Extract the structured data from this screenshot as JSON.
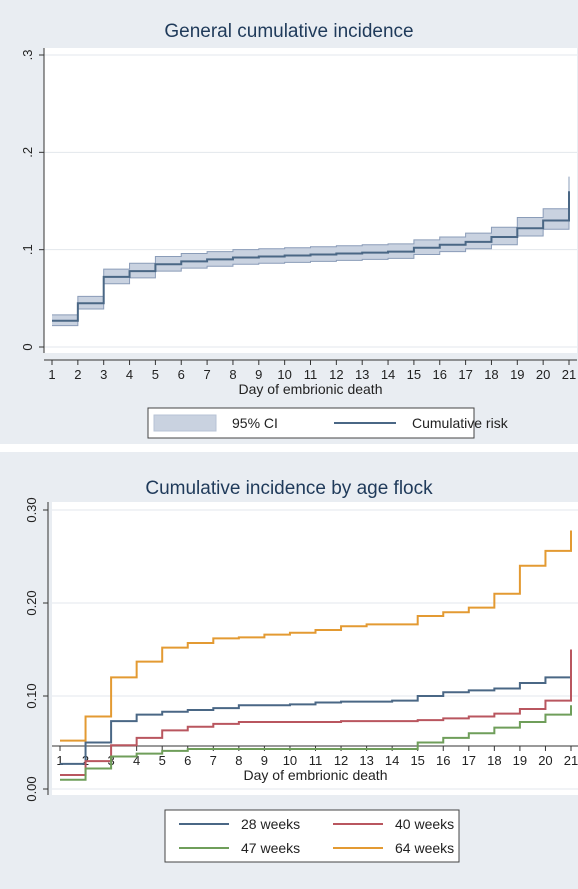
{
  "chart_data": [
    {
      "type": "line",
      "step": true,
      "title": "General cumulative incidence",
      "xlabel": "Day of embrionic death",
      "ylabel": "",
      "xlim": [
        1,
        21
      ],
      "ylim": [
        0,
        0.3
      ],
      "x_ticks": [
        1,
        2,
        3,
        4,
        5,
        6,
        7,
        8,
        9,
        10,
        11,
        12,
        13,
        14,
        15,
        16,
        17,
        18,
        19,
        20,
        21
      ],
      "y_ticks": [
        0,
        0.1,
        0.2,
        0.3
      ],
      "y_tick_labels": [
        "0",
        ".1",
        ".2",
        ".3"
      ],
      "y_tick_labels_rotated": true,
      "grid": "horizontal",
      "legend_position": "bottom",
      "colors": {
        "line": "#4a6785",
        "ci_fill": "#c9d2e0",
        "ci_stroke": "#8a9cb8"
      },
      "x": [
        1,
        2,
        3,
        4,
        5,
        6,
        7,
        8,
        9,
        10,
        11,
        12,
        13,
        14,
        15,
        16,
        17,
        18,
        19,
        20,
        21
      ],
      "series": [
        {
          "name": "Cumulative risk",
          "values": [
            0.027,
            0.045,
            0.072,
            0.078,
            0.085,
            0.088,
            0.09,
            0.092,
            0.093,
            0.094,
            0.095,
            0.096,
            0.097,
            0.098,
            0.102,
            0.105,
            0.108,
            0.113,
            0.122,
            0.13,
            0.16
          ],
          "lower": [
            0.022,
            0.039,
            0.065,
            0.071,
            0.078,
            0.081,
            0.083,
            0.085,
            0.086,
            0.087,
            0.088,
            0.089,
            0.09,
            0.091,
            0.095,
            0.098,
            0.101,
            0.105,
            0.114,
            0.121,
            0.148
          ],
          "upper": [
            0.033,
            0.052,
            0.08,
            0.086,
            0.093,
            0.096,
            0.098,
            0.1,
            0.101,
            0.102,
            0.103,
            0.104,
            0.105,
            0.106,
            0.11,
            0.113,
            0.117,
            0.123,
            0.133,
            0.142,
            0.175
          ]
        }
      ],
      "legend": [
        {
          "label": "95% CI",
          "kind": "band"
        },
        {
          "label": "Cumulative risk",
          "kind": "line"
        }
      ]
    },
    {
      "type": "line",
      "step": true,
      "title": "Cumulative incidence by age flock",
      "xlabel": "Day of embrionic death",
      "ylabel": "",
      "xlim": [
        1,
        21
      ],
      "ylim": [
        0,
        0.3
      ],
      "x_ticks": [
        1,
        2,
        3,
        4,
        5,
        6,
        7,
        8,
        9,
        10,
        11,
        12,
        13,
        14,
        15,
        16,
        17,
        18,
        19,
        20,
        21
      ],
      "y_ticks": [
        0,
        0.1,
        0.2,
        0.3
      ],
      "y_tick_labels": [
        "0.00",
        "0.10",
        "0.20",
        "0.30"
      ],
      "y_tick_labels_rotated": true,
      "grid": "horizontal",
      "legend_position": "bottom",
      "x": [
        1,
        2,
        3,
        4,
        5,
        6,
        7,
        8,
        9,
        10,
        11,
        12,
        13,
        14,
        15,
        16,
        17,
        18,
        19,
        20,
        21
      ],
      "series": [
        {
          "name": "28 weeks",
          "color": "#4a6785",
          "values": [
            0.027,
            0.05,
            0.073,
            0.08,
            0.083,
            0.085,
            0.087,
            0.09,
            0.09,
            0.091,
            0.093,
            0.094,
            0.094,
            0.095,
            0.1,
            0.104,
            0.106,
            0.108,
            0.114,
            0.12,
            0.15
          ]
        },
        {
          "name": "40 weeks",
          "color": "#b9565f",
          "values": [
            0.015,
            0.03,
            0.047,
            0.055,
            0.063,
            0.067,
            0.07,
            0.072,
            0.072,
            0.072,
            0.072,
            0.073,
            0.073,
            0.073,
            0.074,
            0.076,
            0.078,
            0.081,
            0.086,
            0.095,
            0.15
          ]
        },
        {
          "name": "47 weeks",
          "color": "#6f9e5a",
          "values": [
            0.01,
            0.022,
            0.035,
            0.038,
            0.041,
            0.043,
            0.043,
            0.043,
            0.043,
            0.043,
            0.043,
            0.043,
            0.043,
            0.043,
            0.05,
            0.055,
            0.06,
            0.066,
            0.072,
            0.08,
            0.09
          ]
        },
        {
          "name": "64 weeks",
          "color": "#e39a32",
          "values": [
            0.052,
            0.078,
            0.12,
            0.137,
            0.152,
            0.157,
            0.162,
            0.163,
            0.166,
            0.168,
            0.171,
            0.175,
            0.177,
            0.177,
            0.186,
            0.19,
            0.195,
            0.21,
            0.24,
            0.256,
            0.278
          ]
        }
      ],
      "legend": [
        {
          "label": "28 weeks",
          "color": "#4a6785"
        },
        {
          "label": "40 weeks",
          "color": "#b9565f"
        },
        {
          "label": "47 weeks",
          "color": "#6f9e5a"
        },
        {
          "label": "64 weeks",
          "color": "#e39a32"
        }
      ]
    }
  ]
}
